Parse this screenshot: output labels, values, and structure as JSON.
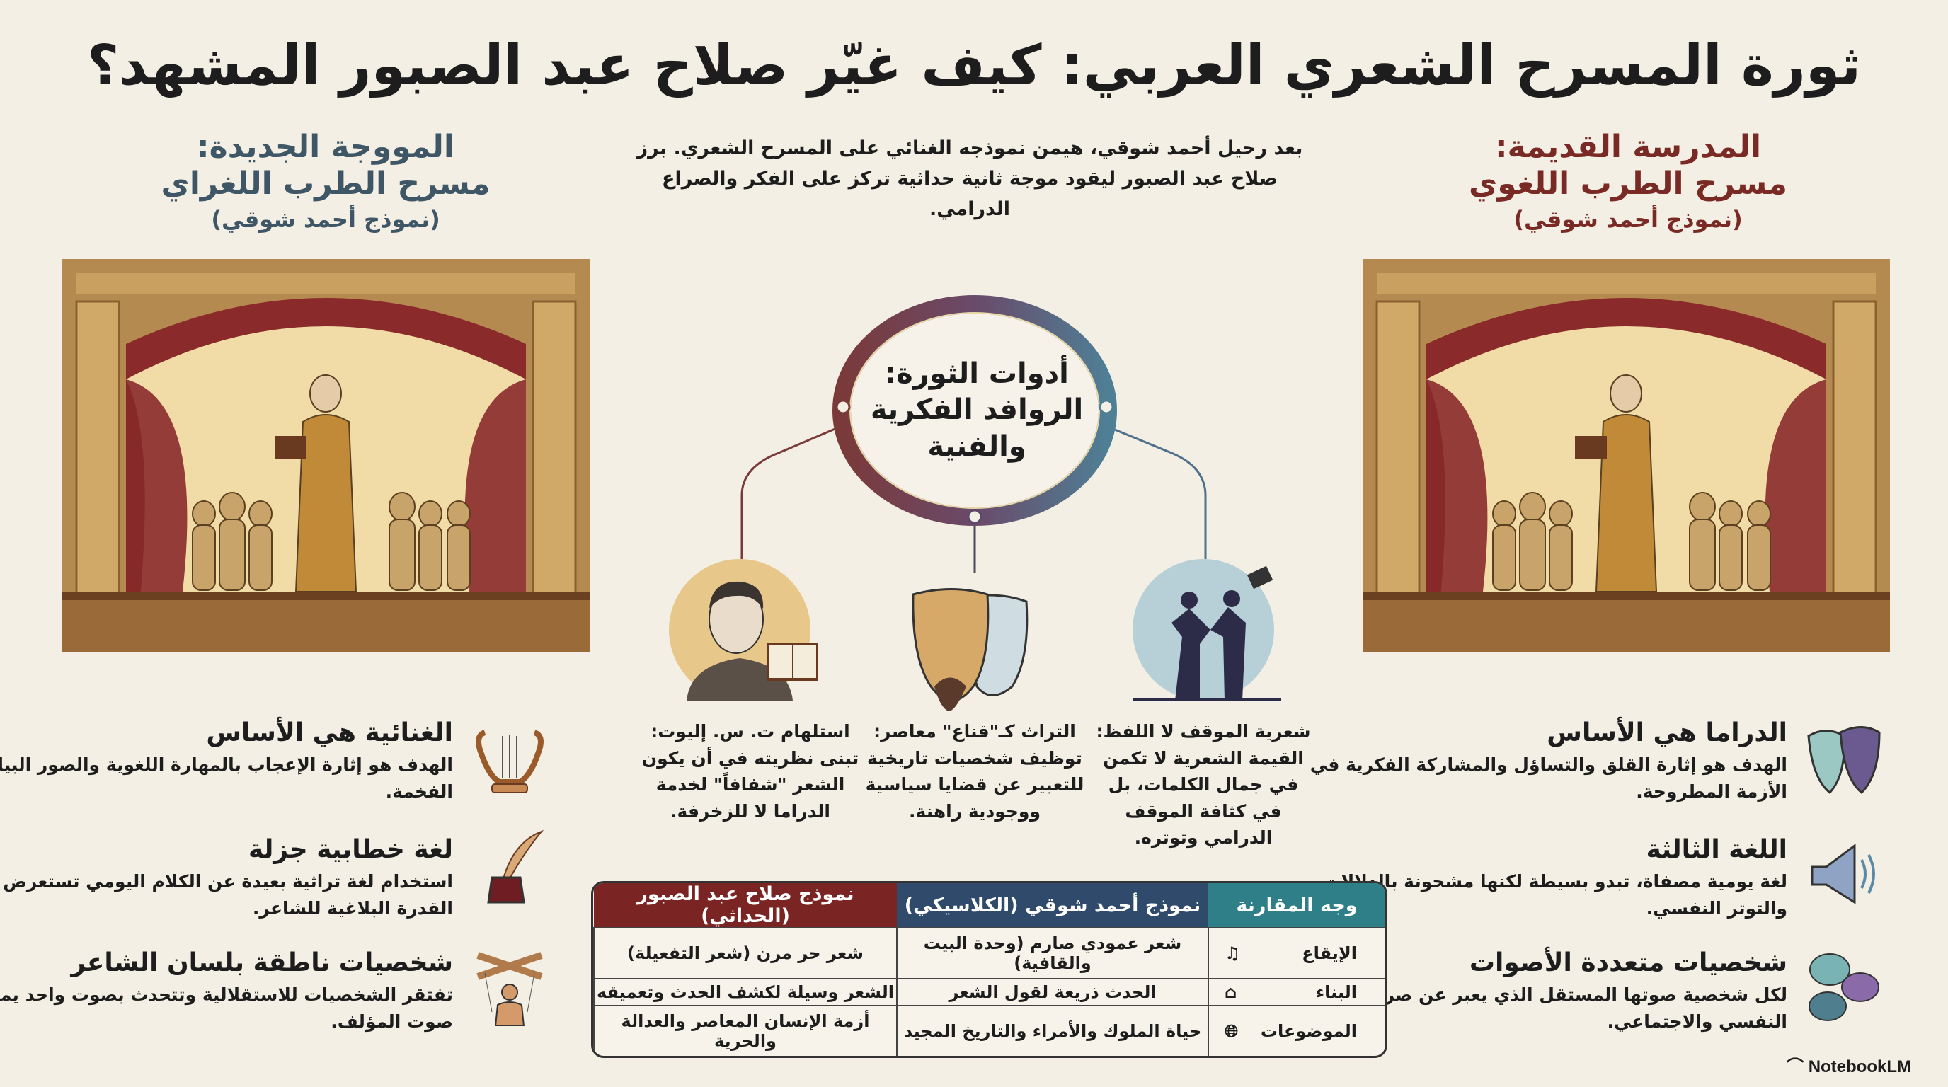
{
  "title": "ثورة المسرح الشعري العربي: كيف غيّر صلاح عبد الصبور المشهد؟",
  "intro": "بعد رحيل أحمد شوقي، هيمن نموذجه الغنائي على المسرح الشعري. برز صلاح عبد الصبور ليقود موجة ثانية حداثية تركز على الفكر والصراع الدرامي.",
  "new_wave": {
    "line1": "المووجة الجديدة:",
    "line2": "مسرح الطرب اللغراي",
    "line3": "(نموذج أحمد شوقي)"
  },
  "old_school": {
    "line1": "المدرسة القديمة:",
    "line2": "مسرح الطرب اللغوي",
    "line3": "(نموذج أحمد شوقي)"
  },
  "hub": {
    "line1": "أدوات الثورة:",
    "line2": "الروافد الفكرية",
    "line3": "والفنية"
  },
  "tools": [
    {
      "icon": "eliot-portrait-book",
      "text": "استلهام ت. س. إليوت: تبنى نظريته في أن يكون الشعر \"شفافاً\" لخدمة الدراما لا للزخرفة."
    },
    {
      "icon": "theatre-masks",
      "text": "التراث كـ\"قناع\" معاصر: توظيف شخصيات تاريخية للتعبير عن قضايا سياسية ووجودية راهنة."
    },
    {
      "icon": "dramatic-confrontation",
      "text": "شعرية الموقف لا اللفظ: القيمة الشعرية لا تكمن في جمال الكلمات، بل في كثافة الموقف الدرامي وتوتره."
    }
  ],
  "left_features": [
    {
      "icon": "lyre-icon",
      "title": "الغنائية هي الأساس",
      "text": "الهدف هو إثارة الإعجاب بالمهارة اللغوية والصور البيانية الفخمة."
    },
    {
      "icon": "quill-ink-icon",
      "title": "لغة خطابية جزلة",
      "text": "استخدام لغة تراثية بعيدة عن الكلام اليومي تستعرض القدرة البلاغية للشاعر."
    },
    {
      "icon": "puppet-icon",
      "title": "شخصيات ناطقة بلسان الشاعر",
      "text": "تفتقر الشخصيات للاستقلالية وتتحدث بصوت واحد يمثل صوت المؤلف."
    }
  ],
  "right_features": [
    {
      "icon": "drama-masks-icon",
      "title": "الدراما هي الأساس",
      "text": "الهدف هو إثارة القلق والتساؤل والمشاركة الفكرية في الأزمة المطروحة."
    },
    {
      "icon": "megaphone-icon",
      "title": "اللغة الثالثة",
      "text": "لغة يومية مصفاة، تبدو بسيطة لكنها مشحونة بالدلالات والتوتر النفسي."
    },
    {
      "icon": "speech-bubbles-icon",
      "title": "شخصيات متعددة الأصوات",
      "text": "لكل شخصية صوتها المستقل الذي يعبر عن صراعها النفسي والاجتماعي."
    }
  ],
  "table": {
    "headers": [
      "وجه المقارنة",
      "نموذج أحمد شوقي (الكلاسيكي)",
      "نموذج صلاح عبد الصبور (الحداثي)"
    ],
    "rows": [
      {
        "icon": "music-note-icon",
        "aspect": "الإيقاع",
        "classic": "شعر عمودي صارم (وحدة البيت والقافية)",
        "modern": "شعر حر مرن (شعر التفعيلة)"
      },
      {
        "icon": "building-icon",
        "aspect": "البناء",
        "classic": "الحدث ذريعة لقول الشعر",
        "modern": "الشعر وسيلة لكشف الحدث وتعميقه"
      },
      {
        "icon": "globe-icon",
        "aspect": "الموضوعات",
        "classic": "حياة الملوك والأمراء والتاريخ المجيد",
        "modern": "أزمة الإنسان المعاصر والعدالة والحرية"
      }
    ]
  },
  "brand": "NotebookLM",
  "colors": {
    "background": "#f3efe4",
    "old": "#7a2a25",
    "new": "#3e5666",
    "teal": "#2e7f88",
    "navy": "#2f4a6b",
    "maroon": "#7a2424"
  }
}
